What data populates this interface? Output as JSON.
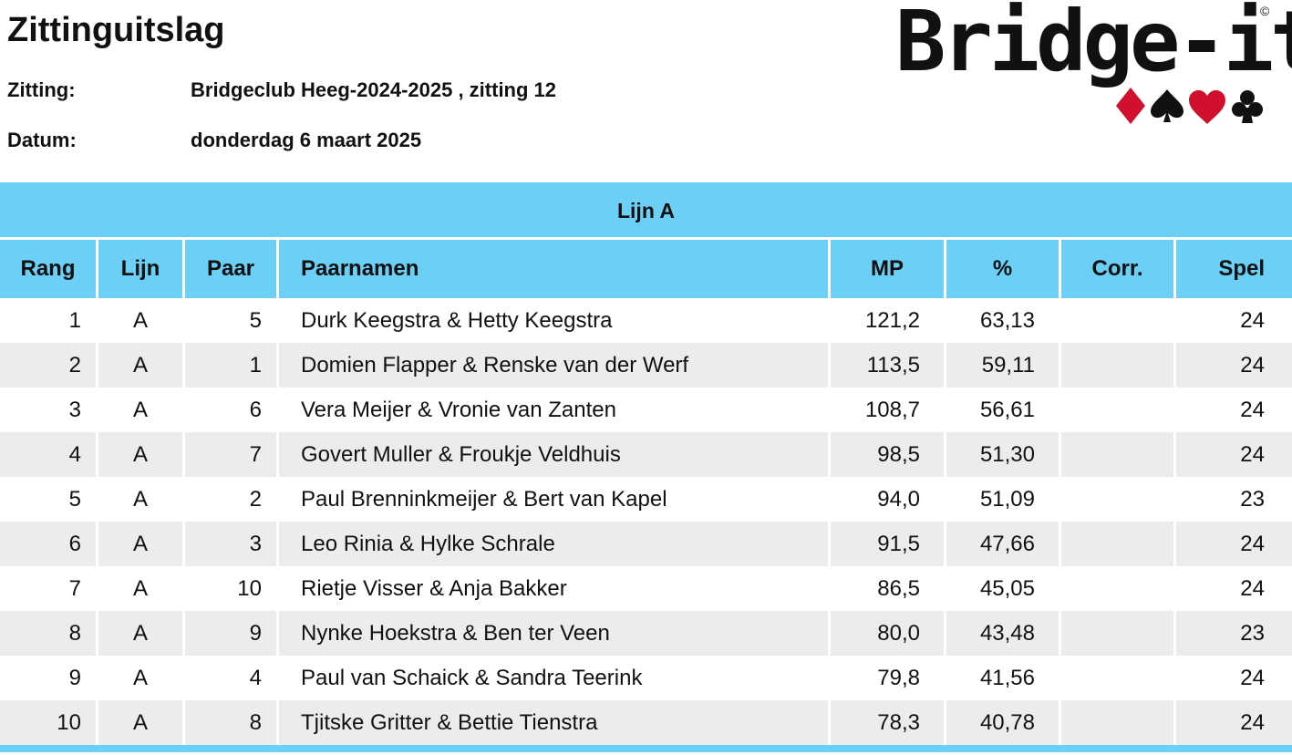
{
  "title": "Zittinguitslag",
  "meta": {
    "zitting_label": "Zitting:",
    "zitting_value": "Bridgeclub Heeg-2024-2025 , zitting 12",
    "datum_label": "Datum:",
    "datum_value": "donderdag 6 maart 2025"
  },
  "logo": {
    "text": "Bridge-it",
    "copyright": "©",
    "suits": [
      "diamond-icon",
      "spade-icon",
      "heart-icon",
      "club-icon"
    ],
    "colors": {
      "red": "#d0102c",
      "black": "#111111"
    }
  },
  "table": {
    "section_title": "Lijn A",
    "headers": {
      "rang": "Rang",
      "lijn": "Lijn",
      "paar": "Paar",
      "naam": "Paarnamen",
      "mp": "MP",
      "pct": "%",
      "corr": "Corr.",
      "spel": "Spel"
    },
    "rows": [
      {
        "rang": "1",
        "lijn": "A",
        "paar": "5",
        "naam": "Durk Keegstra & Hetty Keegstra",
        "mp": "121,2",
        "pct": "63,13",
        "corr": "",
        "spel": "24"
      },
      {
        "rang": "2",
        "lijn": "A",
        "paar": "1",
        "naam": "Domien Flapper & Renske van der Werf",
        "mp": "113,5",
        "pct": "59,11",
        "corr": "",
        "spel": "24"
      },
      {
        "rang": "3",
        "lijn": "A",
        "paar": "6",
        "naam": "Vera Meijer & Vronie van Zanten",
        "mp": "108,7",
        "pct": "56,61",
        "corr": "",
        "spel": "24"
      },
      {
        "rang": "4",
        "lijn": "A",
        "paar": "7",
        "naam": "Govert Muller & Froukje Veldhuis",
        "mp": "98,5",
        "pct": "51,30",
        "corr": "",
        "spel": "24"
      },
      {
        "rang": "5",
        "lijn": "A",
        "paar": "2",
        "naam": "Paul Brenninkmeijer & Bert van Kapel",
        "mp": "94,0",
        "pct": "51,09",
        "corr": "",
        "spel": "23"
      },
      {
        "rang": "6",
        "lijn": "A",
        "paar": "3",
        "naam": "Leo Rinia & Hylke Schrale",
        "mp": "91,5",
        "pct": "47,66",
        "corr": "",
        "spel": "24"
      },
      {
        "rang": "7",
        "lijn": "A",
        "paar": "10",
        "naam": "Rietje Visser & Anja Bakker",
        "mp": "86,5",
        "pct": "45,05",
        "corr": "",
        "spel": "24"
      },
      {
        "rang": "8",
        "lijn": "A",
        "paar": "9",
        "naam": "Nynke Hoekstra & Ben ter Veen",
        "mp": "80,0",
        "pct": "43,48",
        "corr": "",
        "spel": "23"
      },
      {
        "rang": "9",
        "lijn": "A",
        "paar": "4",
        "naam": "Paul van Schaick & Sandra Teerink",
        "mp": "79,8",
        "pct": "41,56",
        "corr": "",
        "spel": "24"
      },
      {
        "rang": "10",
        "lijn": "A",
        "paar": "8",
        "naam": "Tjitske Gritter & Bettie Tienstra",
        "mp": "78,3",
        "pct": "40,78",
        "corr": "",
        "spel": "24"
      }
    ]
  },
  "colors": {
    "header_bg": "#6ccff6",
    "row_alt_bg": "#ececec"
  }
}
